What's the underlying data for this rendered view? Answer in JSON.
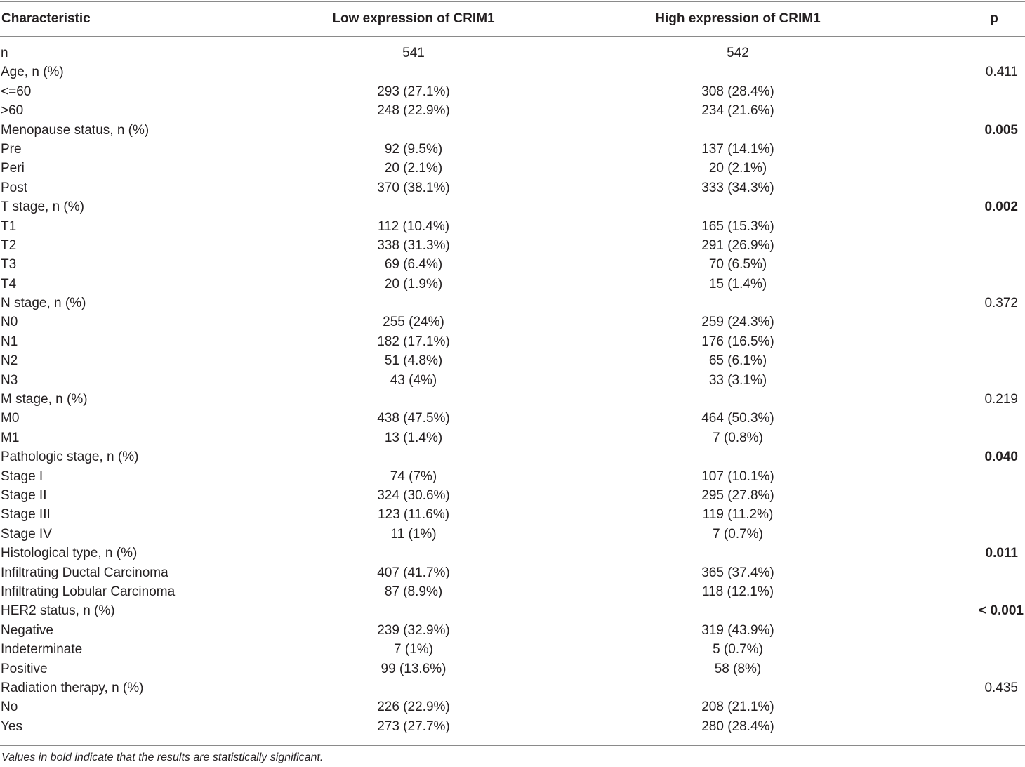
{
  "header": {
    "characteristic": "Characteristic",
    "low": "Low expression of CRIM1",
    "high": "High expression of CRIM1",
    "p": "p"
  },
  "rows": [
    {
      "label": "n",
      "low": "541",
      "high": "542",
      "p": "",
      "bold": false
    },
    {
      "label": "Age, n (%)",
      "low": "",
      "high": "",
      "p": "0.411",
      "bold": false
    },
    {
      "label": "<=60",
      "low": "293 (27.1%)",
      "high": "308 (28.4%)",
      "p": "",
      "bold": false
    },
    {
      "label": ">60",
      "low": "248 (22.9%)",
      "high": "234 (21.6%)",
      "p": "",
      "bold": false
    },
    {
      "label": "Menopause status, n (%)",
      "low": "",
      "high": "",
      "p": "0.005",
      "bold": true
    },
    {
      "label": "Pre",
      "low": "92 (9.5%)",
      "high": "137 (14.1%)",
      "p": "",
      "bold": false
    },
    {
      "label": "Peri",
      "low": "20 (2.1%)",
      "high": "20 (2.1%)",
      "p": "",
      "bold": false
    },
    {
      "label": "Post",
      "low": "370 (38.1%)",
      "high": "333 (34.3%)",
      "p": "",
      "bold": false
    },
    {
      "label": "T stage, n (%)",
      "low": "",
      "high": "",
      "p": "0.002",
      "bold": true
    },
    {
      "label": "T1",
      "low": "112 (10.4%)",
      "high": "165 (15.3%)",
      "p": "",
      "bold": false
    },
    {
      "label": "T2",
      "low": "338 (31.3%)",
      "high": "291 (26.9%)",
      "p": "",
      "bold": false
    },
    {
      "label": "T3",
      "low": "69 (6.4%)",
      "high": "70 (6.5%)",
      "p": "",
      "bold": false
    },
    {
      "label": "T4",
      "low": "20 (1.9%)",
      "high": "15 (1.4%)",
      "p": "",
      "bold": false
    },
    {
      "label": "N stage, n (%)",
      "low": "",
      "high": "",
      "p": "0.372",
      "bold": false
    },
    {
      "label": "N0",
      "low": "255 (24%)",
      "high": "259 (24.3%)",
      "p": "",
      "bold": false
    },
    {
      "label": "N1",
      "low": "182 (17.1%)",
      "high": "176 (16.5%)",
      "p": "",
      "bold": false
    },
    {
      "label": "N2",
      "low": "51 (4.8%)",
      "high": "65 (6.1%)",
      "p": "",
      "bold": false
    },
    {
      "label": "N3",
      "low": "43 (4%)",
      "high": "33 (3.1%)",
      "p": "",
      "bold": false
    },
    {
      "label": "M stage, n (%)",
      "low": "",
      "high": "",
      "p": "0.219",
      "bold": false
    },
    {
      "label": "M0",
      "low": "438 (47.5%)",
      "high": "464 (50.3%)",
      "p": "",
      "bold": false
    },
    {
      "label": "M1",
      "low": "13 (1.4%)",
      "high": "7 (0.8%)",
      "p": "",
      "bold": false
    },
    {
      "label": "Pathologic stage, n (%)",
      "low": "",
      "high": "",
      "p": "0.040",
      "bold": true
    },
    {
      "label": "Stage I",
      "low": "74 (7%)",
      "high": "107 (10.1%)",
      "p": "",
      "bold": false
    },
    {
      "label": "Stage II",
      "low": "324 (30.6%)",
      "high": "295 (27.8%)",
      "p": "",
      "bold": false
    },
    {
      "label": "Stage III",
      "low": "123 (11.6%)",
      "high": "119 (11.2%)",
      "p": "",
      "bold": false
    },
    {
      "label": "Stage IV",
      "low": "11 (1%)",
      "high": "7 (0.7%)",
      "p": "",
      "bold": false
    },
    {
      "label": "Histological type, n (%)",
      "low": "",
      "high": "",
      "p": "0.011",
      "bold": true
    },
    {
      "label": "Infiltrating Ductal Carcinoma",
      "low": "407 (41.7%)",
      "high": "365 (37.4%)",
      "p": "",
      "bold": false
    },
    {
      "label": "Infiltrating Lobular Carcinoma",
      "low": "87 (8.9%)",
      "high": "118 (12.1%)",
      "p": "",
      "bold": false
    },
    {
      "label": "HER2 status, n (%)",
      "low": "",
      "high": "",
      "p": "< 0.001",
      "bold": true
    },
    {
      "label": "Negative",
      "low": "239 (32.9%)",
      "high": "319 (43.9%)",
      "p": "",
      "bold": false
    },
    {
      "label": "Indeterminate",
      "low": "7 (1%)",
      "high": "5 (0.7%)",
      "p": "",
      "bold": false
    },
    {
      "label": "Positive",
      "low": "99 (13.6%)",
      "high": "58 (8%)",
      "p": "",
      "bold": false
    },
    {
      "label": "Radiation therapy, n (%)",
      "low": "",
      "high": "",
      "p": "0.435",
      "bold": false
    },
    {
      "label": "No",
      "low": "226 (22.9%)",
      "high": "208 (21.1%)",
      "p": "",
      "bold": false
    },
    {
      "label": "Yes",
      "low": "273 (27.7%)",
      "high": "280 (28.4%)",
      "p": "",
      "bold": false
    }
  ],
  "footnote": "Values in bold indicate that the results are statistically significant."
}
